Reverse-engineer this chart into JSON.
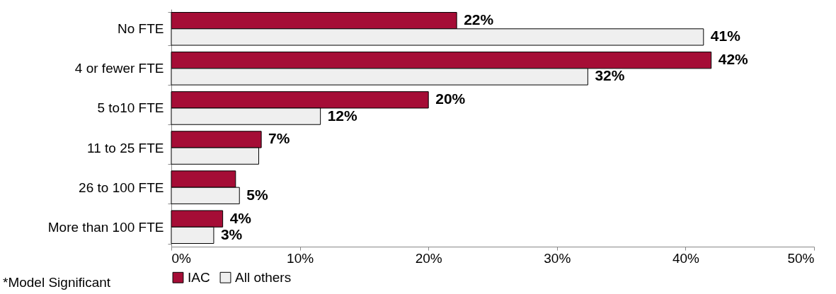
{
  "chart_data": {
    "type": "bar",
    "orientation": "horizontal",
    "categories": [
      "No FTE",
      "4 or fewer FTE",
      "5 to10 FTE",
      "11 to 25 FTE",
      "26 to 100 FTE",
      "More than 100 FTE"
    ],
    "series": [
      {
        "name": "IAC",
        "color": "#a50d36",
        "values": [
          22.2,
          42,
          20,
          7,
          5,
          4
        ],
        "value_labels": [
          "22%",
          "42%",
          "20%",
          "7%",
          null,
          "4%"
        ]
      },
      {
        "name": "All others",
        "color": "#efefef",
        "values": [
          41.4,
          32.4,
          11.6,
          6.8,
          5.3,
          3.3
        ],
        "value_labels": [
          "41%",
          "32%",
          "12%",
          null,
          "5%",
          "3%"
        ]
      }
    ],
    "xlim": [
      0,
      50
    ],
    "xticks": [
      {
        "value": 0,
        "label": "0%"
      },
      {
        "value": 10,
        "label": "10%"
      },
      {
        "value": 20,
        "label": "20%"
      },
      {
        "value": 30,
        "label": "30%"
      },
      {
        "value": 40,
        "label": "40%"
      },
      {
        "value": 50,
        "label": "50%"
      }
    ],
    "grid": false,
    "legend": "bottom",
    "annotations": [
      "*Model Significant"
    ]
  }
}
